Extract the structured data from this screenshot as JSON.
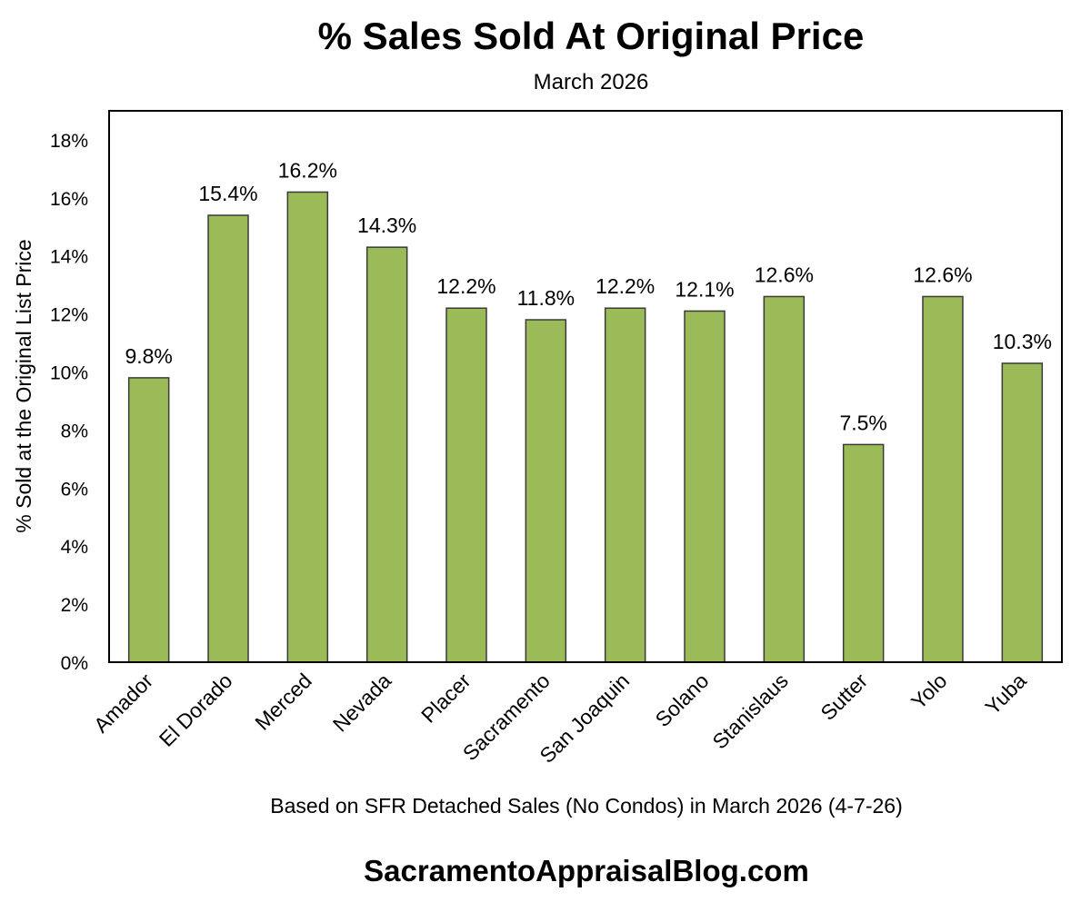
{
  "chart_data": {
    "type": "bar",
    "title": "% Sales Sold At Original Price",
    "subtitle": "March 2026",
    "xlabel": "",
    "ylabel": "% Sold at the Original List Price",
    "categories": [
      "Amador",
      "El Dorado",
      "Merced",
      "Nevada",
      "Placer",
      "Sacramento",
      "San Joaquin",
      "Solano",
      "Stanislaus",
      "Sutter",
      "Yolo",
      "Yuba"
    ],
    "values": [
      9.8,
      15.4,
      16.2,
      14.3,
      12.2,
      11.8,
      12.2,
      12.1,
      12.6,
      7.5,
      12.6,
      10.3
    ],
    "data_labels": [
      "9.8%",
      "15.4%",
      "16.2%",
      "14.3%",
      "12.2%",
      "11.8%",
      "12.2%",
      "12.1%",
      "12.6%",
      "7.5%",
      "12.6%",
      "10.3%"
    ],
    "ylim": [
      0,
      19
    ],
    "yticks": [
      0,
      2,
      4,
      6,
      8,
      10,
      12,
      14,
      16,
      18
    ],
    "ytick_labels": [
      "0%",
      "2%",
      "4%",
      "6%",
      "8%",
      "10%",
      "12%",
      "14%",
      "16%",
      "18%"
    ],
    "grid": false,
    "legend": "none",
    "colors": {
      "bar": "#9BBB59",
      "bar_border": "#3a3a3a"
    }
  },
  "footer": {
    "note": "Based on SFR Detached Sales (No Condos) in March 2026 (4-7-26)",
    "source": "SacramentoAppraisalBlog.com"
  }
}
